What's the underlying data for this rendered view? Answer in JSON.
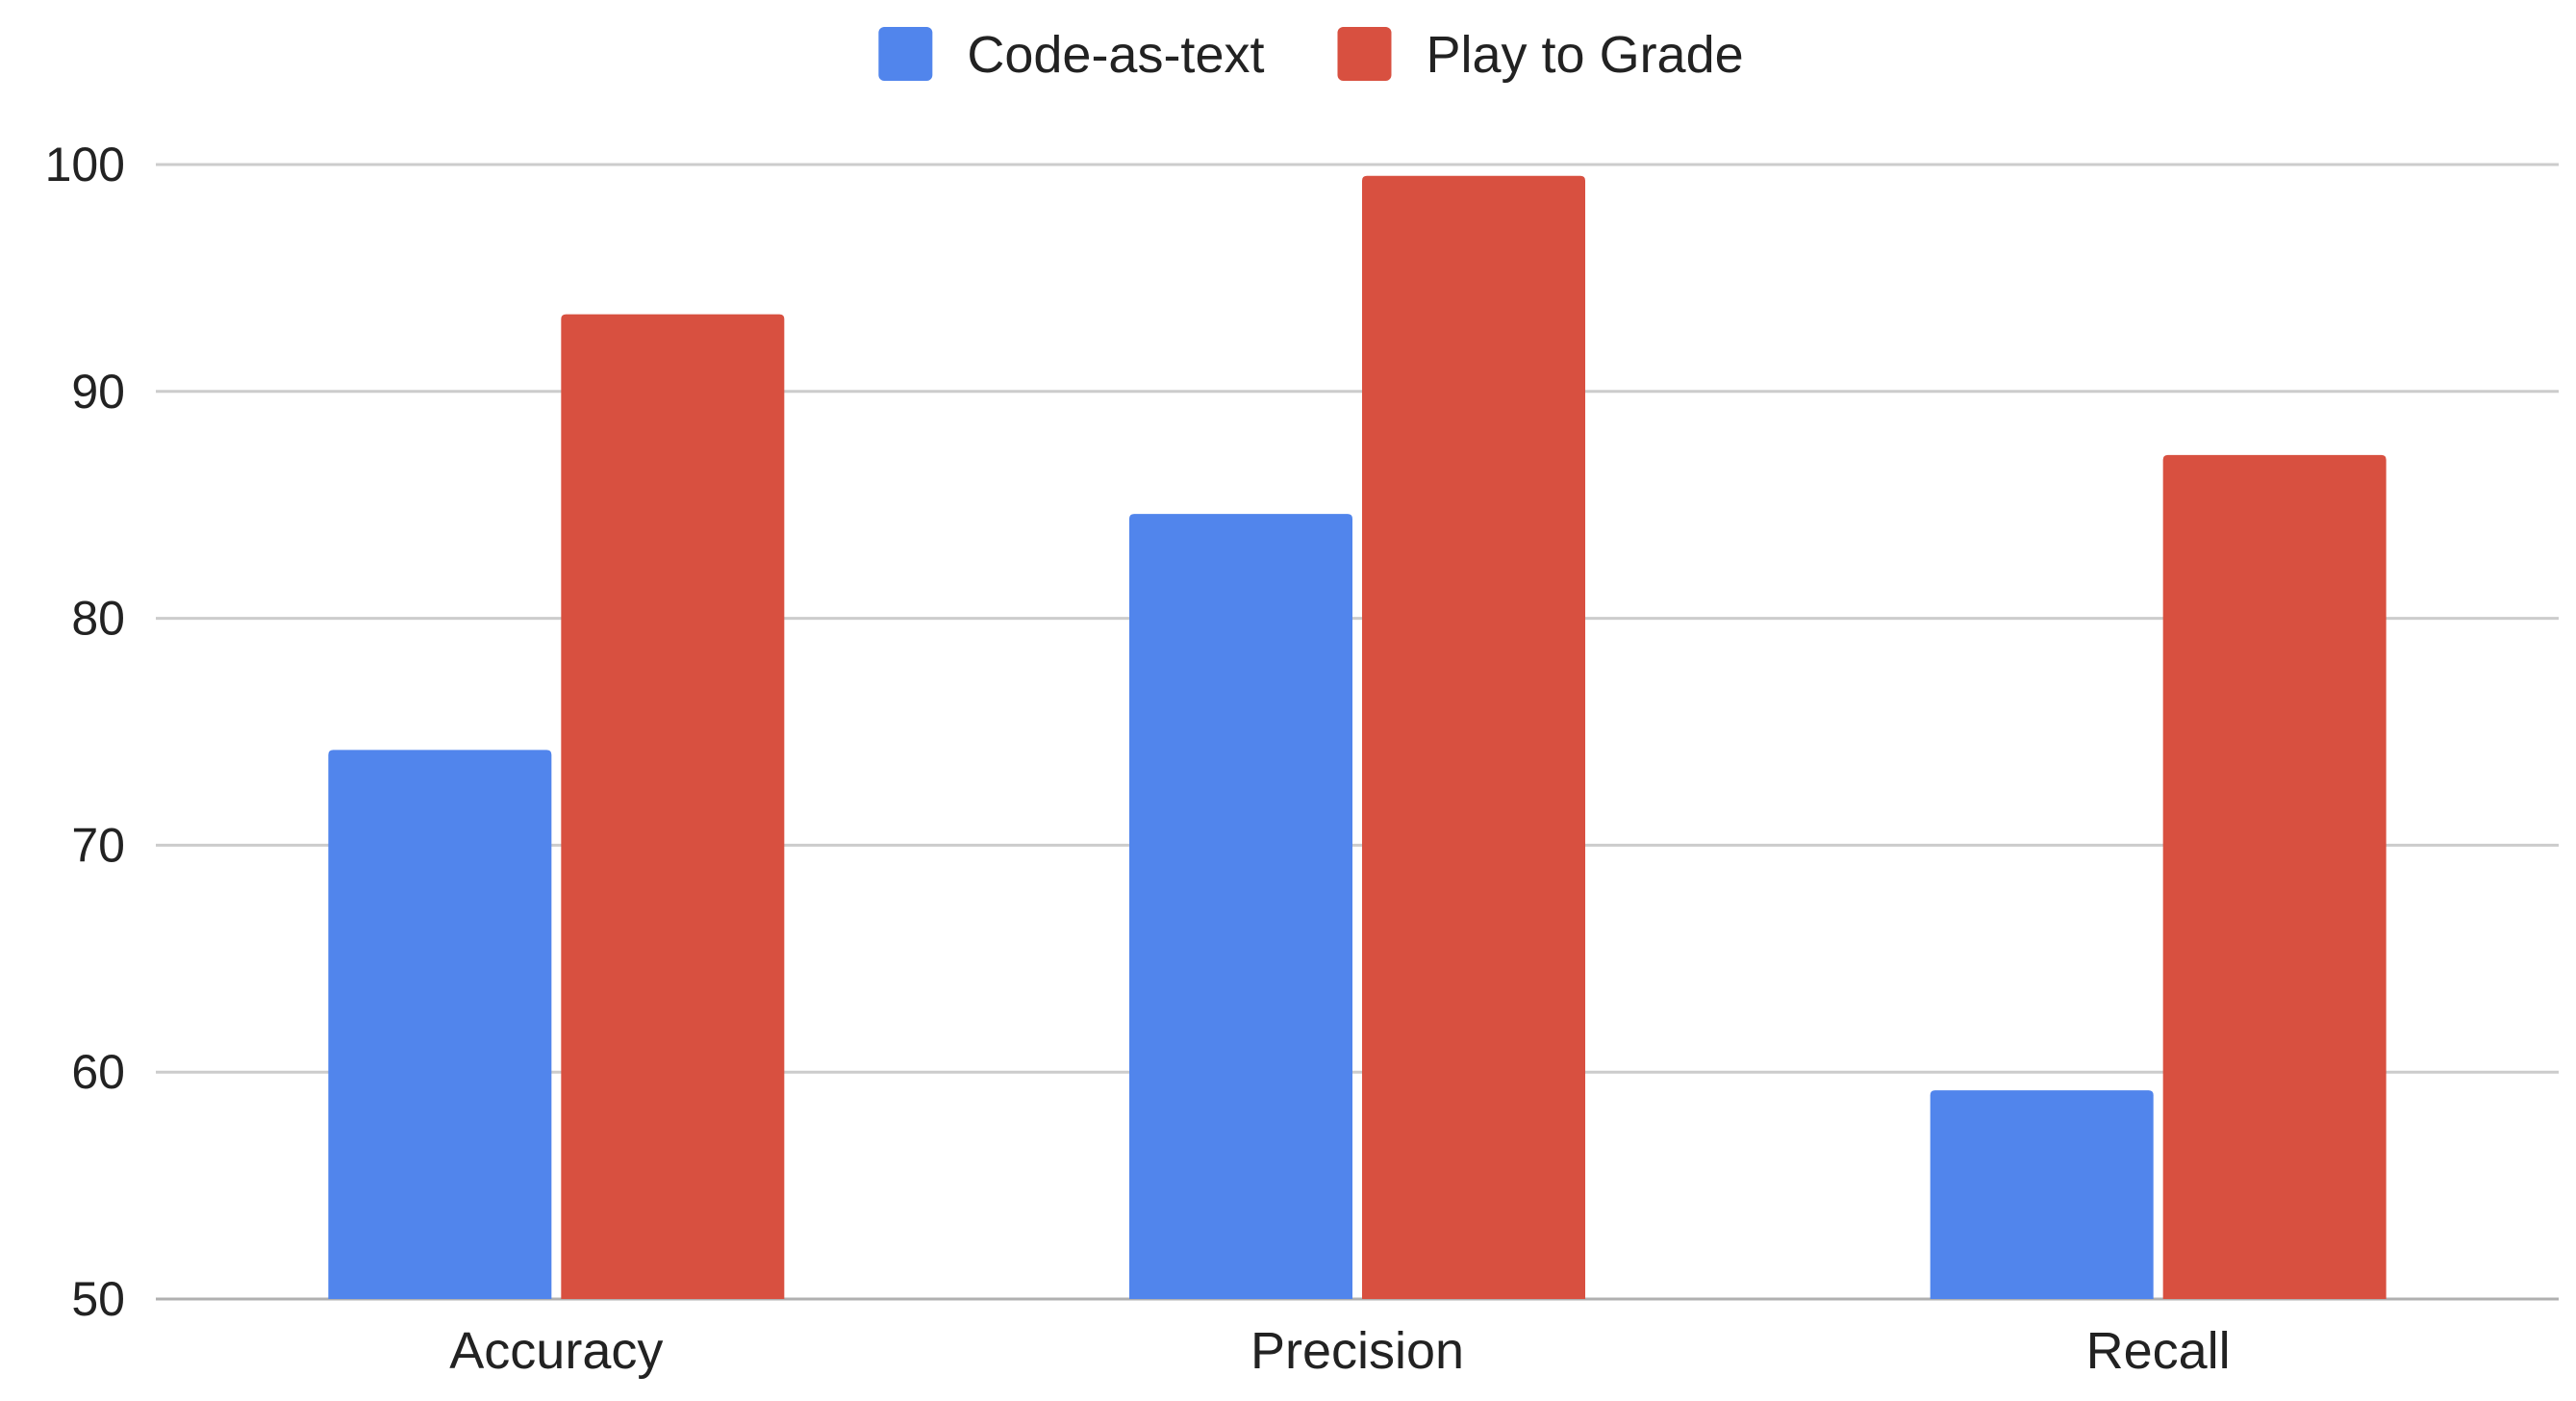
{
  "chart_data": {
    "type": "bar",
    "title": "",
    "xlabel": "",
    "ylabel": "",
    "categories": [
      "Accuracy",
      "Precision",
      "Recall"
    ],
    "series": [
      {
        "name": "Code-as-text",
        "color": "#5185EC",
        "values": [
          74.2,
          84.6,
          59.2
        ]
      },
      {
        "name": "Play to Grade",
        "color": "#D85040",
        "values": [
          93.4,
          99.5,
          87.2
        ]
      }
    ],
    "ylim": [
      50,
      100
    ],
    "yticks": [
      50,
      60,
      70,
      80,
      90,
      100
    ],
    "grid": true,
    "legend_position": "top-center"
  }
}
